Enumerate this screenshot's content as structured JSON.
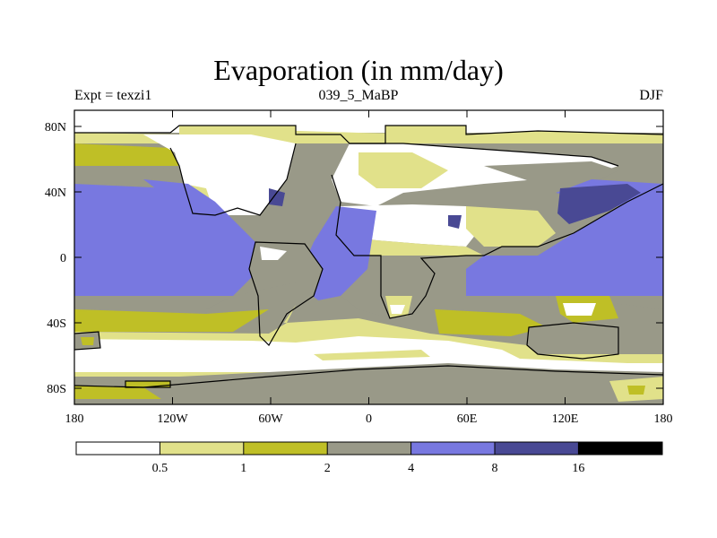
{
  "title": "Evaporation (in mm/day)",
  "subtitle_left": "Expt = texzi1",
  "subtitle_center": "039_5_MaBP",
  "subtitle_right": "DJF",
  "axes": {
    "lat_labels": [
      "80N",
      "40N",
      "0",
      "40S",
      "80S"
    ],
    "lon_labels": [
      "180",
      "120W",
      "60W",
      "0",
      "60E",
      "120E",
      "180"
    ]
  },
  "colorbar": {
    "levels": [
      "0.5",
      "1",
      "2",
      "4",
      "8",
      "16"
    ],
    "colors": [
      "#ffffff",
      "#e1e18a",
      "#bfbf26",
      "#999988",
      "#7878e0",
      "#494994",
      "#000000"
    ]
  },
  "palette": {
    "white": "#ffffff",
    "light_yellow": "#e1e18a",
    "olive": "#bfbf26",
    "gray": "#999988",
    "blue": "#7878e0",
    "dark_blue": "#494994"
  }
}
